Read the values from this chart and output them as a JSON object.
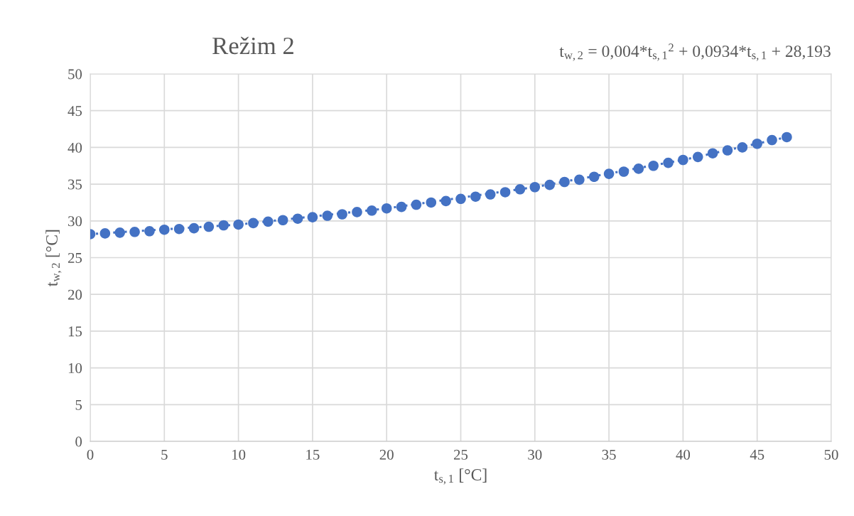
{
  "chart_data": {
    "type": "scatter",
    "title": "Režim 2",
    "xlabel": "t$_{s,1}$ [°C]",
    "ylabel": "t$_{w,2}$ [°C]",
    "annotations": [
      "t$_{w,2}$ = 0,004*t$_{s,1}$$^{2}$ + 0,0934*t$_{s,1}$ + 28,193"
    ],
    "xlim": [
      0,
      50
    ],
    "xticks": [
      0,
      5,
      10,
      15,
      20,
      25,
      30,
      35,
      40,
      45,
      50
    ],
    "ylim": [
      0,
      50
    ],
    "yticks": [
      0,
      5,
      10,
      15,
      20,
      25,
      30,
      35,
      40,
      45,
      50
    ],
    "grid": true,
    "legend": false,
    "series": [
      {
        "type": "line",
        "line_style": "dotted",
        "marker": "none",
        "color": "#4472c4",
        "x": [
          0,
          10,
          20,
          30,
          40,
          47
        ],
        "values": [
          28.2,
          29.5,
          31.7,
          34.6,
          38.3,
          41.4
        ]
      },
      {
        "marker": "circle",
        "color": "#4472c4",
        "x": [
          0,
          1,
          2,
          3,
          4,
          5,
          6,
          7,
          8,
          9,
          10,
          11,
          12,
          13,
          14,
          15,
          16,
          17,
          18,
          19,
          20,
          21,
          22,
          23,
          24,
          25,
          26,
          27,
          28,
          29,
          30,
          31,
          32,
          33,
          34,
          35,
          36,
          37,
          38,
          39,
          40,
          41,
          42,
          43,
          44,
          45,
          46,
          47
        ],
        "values": [
          28.2,
          28.3,
          28.4,
          28.5,
          28.6,
          28.8,
          28.9,
          29.0,
          29.2,
          29.4,
          29.5,
          29.7,
          29.9,
          30.1,
          30.3,
          30.5,
          30.7,
          30.9,
          31.2,
          31.4,
          31.7,
          31.9,
          32.2,
          32.5,
          32.7,
          33.0,
          33.3,
          33.6,
          33.9,
          34.3,
          34.6,
          34.9,
          35.3,
          35.6,
          36.0,
          36.4,
          36.7,
          37.1,
          37.5,
          37.9,
          38.3,
          38.7,
          39.2,
          39.6,
          40.0,
          40.5,
          41.0,
          41.4
        ]
      }
    ]
  }
}
